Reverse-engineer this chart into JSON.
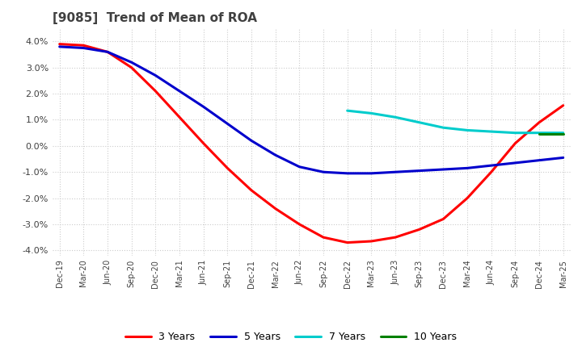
{
  "title": "[9085]  Trend of Mean of ROA",
  "title_color": "#404040",
  "background_color": "#ffffff",
  "plot_bg_color": "#ffffff",
  "grid_color": "#cccccc",
  "ylim": [
    -4.2,
    4.5
  ],
  "yticks": [
    -4.0,
    -3.0,
    -2.0,
    -1.0,
    0.0,
    1.0,
    2.0,
    3.0,
    4.0
  ],
  "x_labels": [
    "Dec-19",
    "Mar-20",
    "Jun-20",
    "Sep-20",
    "Dec-20",
    "Mar-21",
    "Jun-21",
    "Sep-21",
    "Dec-21",
    "Mar-22",
    "Jun-22",
    "Sep-22",
    "Dec-22",
    "Mar-23",
    "Jun-23",
    "Sep-23",
    "Dec-23",
    "Mar-24",
    "Jun-24",
    "Sep-24",
    "Dec-24",
    "Mar-25"
  ],
  "series": {
    "3 Years": {
      "color": "#ff0000",
      "values": [
        3.9,
        3.85,
        3.6,
        3.0,
        2.1,
        1.1,
        0.1,
        -0.85,
        -1.7,
        -2.4,
        -3.0,
        -3.5,
        -3.7,
        -3.65,
        -3.5,
        -3.2,
        -2.8,
        -2.0,
        -1.0,
        0.1,
        0.9,
        1.55
      ]
    },
    "5 Years": {
      "color": "#0000cc",
      "values": [
        3.8,
        3.75,
        3.6,
        3.2,
        2.7,
        2.1,
        1.5,
        0.85,
        0.2,
        -0.35,
        -0.8,
        -1.0,
        -1.05,
        -1.05,
        -1.0,
        -0.95,
        -0.9,
        -0.85,
        -0.75,
        -0.65,
        -0.55,
        -0.45
      ]
    },
    "7 Years": {
      "color": "#00cccc",
      "values": [
        null,
        null,
        null,
        null,
        null,
        null,
        null,
        null,
        null,
        null,
        null,
        null,
        1.35,
        1.25,
        1.1,
        0.9,
        0.7,
        0.6,
        0.55,
        0.5,
        0.5,
        0.5
      ]
    },
    "10 Years": {
      "color": "#008000",
      "values": [
        null,
        null,
        null,
        null,
        null,
        null,
        null,
        null,
        null,
        null,
        null,
        null,
        null,
        null,
        null,
        null,
        null,
        null,
        null,
        null,
        0.45,
        0.45
      ]
    }
  },
  "legend_loc": "lower center",
  "line_width": 2.2
}
